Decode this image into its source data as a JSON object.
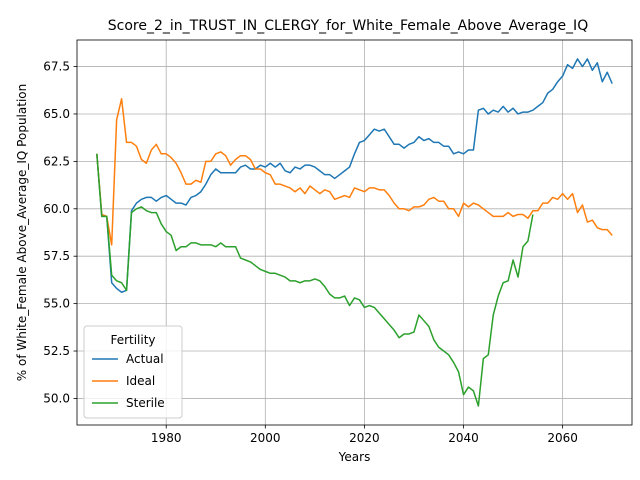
{
  "chart_data": {
    "type": "line",
    "title": "Score_2_in_TRUST_IN_CLERGY_for_White_Female_Above_Average_IQ",
    "xlabel": "Years",
    "ylabel": "% of White_Female Above_Average_IQ Population",
    "xlim": [
      1962,
      2074
    ],
    "ylim": [
      48.6,
      68.9
    ],
    "xticks": [
      1980,
      2000,
      2020,
      2040,
      2060
    ],
    "yticks": [
      50.0,
      52.5,
      55.0,
      57.5,
      60.0,
      62.5,
      65.0,
      67.5
    ],
    "ytick_labels": [
      "50.0",
      "52.5",
      "55.0",
      "57.5",
      "60.0",
      "62.5",
      "65.0",
      "67.5"
    ],
    "grid": true,
    "legend": {
      "title": "Fertility",
      "position": "lower-left"
    },
    "series": [
      {
        "name": "Actual",
        "color": "#1f77b4",
        "points": [
          [
            1966,
            62.9
          ],
          [
            1967,
            59.6
          ],
          [
            1968,
            59.6
          ],
          [
            1969,
            56.1
          ],
          [
            1970,
            55.8
          ],
          [
            1971,
            55.6
          ],
          [
            1972,
            55.7
          ],
          [
            1973,
            59.9
          ],
          [
            1974,
            60.3
          ],
          [
            1975,
            60.5
          ],
          [
            1976,
            60.6
          ],
          [
            1977,
            60.6
          ],
          [
            1978,
            60.4
          ],
          [
            1979,
            60.6
          ],
          [
            1980,
            60.7
          ],
          [
            1981,
            60.5
          ],
          [
            1982,
            60.3
          ],
          [
            1983,
            60.3
          ],
          [
            1984,
            60.2
          ],
          [
            1985,
            60.6
          ],
          [
            1986,
            60.7
          ],
          [
            1987,
            60.9
          ],
          [
            1988,
            61.3
          ],
          [
            1989,
            61.8
          ],
          [
            1990,
            62.1
          ],
          [
            1991,
            61.9
          ],
          [
            1992,
            61.9
          ],
          [
            1993,
            61.9
          ],
          [
            1994,
            61.9
          ],
          [
            1995,
            62.2
          ],
          [
            1996,
            62.3
          ],
          [
            1997,
            62.1
          ],
          [
            1998,
            62.1
          ],
          [
            1999,
            62.3
          ],
          [
            2000,
            62.2
          ],
          [
            2001,
            62.4
          ],
          [
            2002,
            62.2
          ],
          [
            2003,
            62.4
          ],
          [
            2004,
            62.0
          ],
          [
            2005,
            61.9
          ],
          [
            2006,
            62.2
          ],
          [
            2007,
            62.1
          ],
          [
            2008,
            62.3
          ],
          [
            2009,
            62.3
          ],
          [
            2010,
            62.2
          ],
          [
            2011,
            62.0
          ],
          [
            2012,
            61.8
          ],
          [
            2013,
            61.8
          ],
          [
            2014,
            61.6
          ],
          [
            2015,
            61.8
          ],
          [
            2016,
            62.0
          ],
          [
            2017,
            62.2
          ],
          [
            2018,
            62.9
          ],
          [
            2019,
            63.5
          ],
          [
            2020,
            63.6
          ],
          [
            2021,
            63.9
          ],
          [
            2022,
            64.2
          ],
          [
            2023,
            64.1
          ],
          [
            2024,
            64.2
          ],
          [
            2025,
            63.8
          ],
          [
            2026,
            63.4
          ],
          [
            2027,
            63.4
          ],
          [
            2028,
            63.2
          ],
          [
            2029,
            63.4
          ],
          [
            2030,
            63.5
          ],
          [
            2031,
            63.8
          ],
          [
            2032,
            63.6
          ],
          [
            2033,
            63.7
          ],
          [
            2034,
            63.5
          ],
          [
            2035,
            63.5
          ],
          [
            2036,
            63.3
          ],
          [
            2037,
            63.3
          ],
          [
            2038,
            62.9
          ],
          [
            2039,
            63.0
          ],
          [
            2040,
            62.9
          ],
          [
            2041,
            63.1
          ],
          [
            2042,
            63.1
          ],
          [
            2043,
            65.2
          ],
          [
            2044,
            65.3
          ],
          [
            2045,
            65.0
          ],
          [
            2046,
            65.2
          ],
          [
            2047,
            65.1
          ],
          [
            2048,
            65.4
          ],
          [
            2049,
            65.1
          ],
          [
            2050,
            65.3
          ],
          [
            2051,
            65.0
          ],
          [
            2052,
            65.1
          ],
          [
            2053,
            65.1
          ],
          [
            2054,
            65.2
          ],
          [
            2055,
            65.4
          ],
          [
            2056,
            65.6
          ],
          [
            2057,
            66.1
          ],
          [
            2058,
            66.3
          ],
          [
            2059,
            66.7
          ],
          [
            2060,
            67.0
          ],
          [
            2061,
            67.6
          ],
          [
            2062,
            67.4
          ],
          [
            2063,
            67.9
          ],
          [
            2064,
            67.5
          ],
          [
            2065,
            67.9
          ],
          [
            2066,
            67.3
          ],
          [
            2067,
            67.7
          ],
          [
            2068,
            66.7
          ],
          [
            2069,
            67.2
          ],
          [
            2070,
            66.6
          ]
        ]
      },
      {
        "name": "Ideal",
        "color": "#ff7f0e",
        "points": [
          [
            1966,
            62.9
          ],
          [
            1967,
            59.7
          ],
          [
            1968,
            59.6
          ],
          [
            1969,
            58.1
          ],
          [
            1970,
            64.7
          ],
          [
            1971,
            65.8
          ],
          [
            1972,
            63.5
          ],
          [
            1973,
            63.5
          ],
          [
            1974,
            63.3
          ],
          [
            1975,
            62.6
          ],
          [
            1976,
            62.4
          ],
          [
            1977,
            63.1
          ],
          [
            1978,
            63.4
          ],
          [
            1979,
            62.9
          ],
          [
            1980,
            62.9
          ],
          [
            1981,
            62.7
          ],
          [
            1982,
            62.4
          ],
          [
            1983,
            61.9
          ],
          [
            1984,
            61.3
          ],
          [
            1985,
            61.3
          ],
          [
            1986,
            61.5
          ],
          [
            1987,
            61.4
          ],
          [
            1988,
            62.5
          ],
          [
            1989,
            62.5
          ],
          [
            1990,
            62.9
          ],
          [
            1991,
            63.0
          ],
          [
            1992,
            62.8
          ],
          [
            1993,
            62.3
          ],
          [
            1994,
            62.6
          ],
          [
            1995,
            62.8
          ],
          [
            1996,
            62.8
          ],
          [
            1997,
            62.6
          ],
          [
            1998,
            62.1
          ],
          [
            1999,
            62.1
          ],
          [
            2000,
            61.9
          ],
          [
            2001,
            61.8
          ],
          [
            2002,
            61.3
          ],
          [
            2003,
            61.3
          ],
          [
            2004,
            61.2
          ],
          [
            2005,
            61.1
          ],
          [
            2006,
            60.9
          ],
          [
            2007,
            61.1
          ],
          [
            2008,
            60.8
          ],
          [
            2009,
            61.2
          ],
          [
            2010,
            61.0
          ],
          [
            2011,
            60.8
          ],
          [
            2012,
            61.0
          ],
          [
            2013,
            60.9
          ],
          [
            2014,
            60.5
          ],
          [
            2015,
            60.6
          ],
          [
            2016,
            60.7
          ],
          [
            2017,
            60.6
          ],
          [
            2018,
            61.1
          ],
          [
            2019,
            61.0
          ],
          [
            2020,
            60.9
          ],
          [
            2021,
            61.1
          ],
          [
            2022,
            61.1
          ],
          [
            2023,
            61.0
          ],
          [
            2024,
            61.0
          ],
          [
            2025,
            60.7
          ],
          [
            2026,
            60.3
          ],
          [
            2027,
            60.0
          ],
          [
            2028,
            60.0
          ],
          [
            2029,
            59.9
          ],
          [
            2030,
            60.1
          ],
          [
            2031,
            60.1
          ],
          [
            2032,
            60.2
          ],
          [
            2033,
            60.5
          ],
          [
            2034,
            60.6
          ],
          [
            2035,
            60.4
          ],
          [
            2036,
            60.4
          ],
          [
            2037,
            60.0
          ],
          [
            2038,
            60.0
          ],
          [
            2039,
            59.6
          ],
          [
            2040,
            60.3
          ],
          [
            2041,
            60.1
          ],
          [
            2042,
            60.3
          ],
          [
            2043,
            60.2
          ],
          [
            2044,
            60.0
          ],
          [
            2045,
            59.8
          ],
          [
            2046,
            59.6
          ],
          [
            2047,
            59.6
          ],
          [
            2048,
            59.6
          ],
          [
            2049,
            59.8
          ],
          [
            2050,
            59.6
          ],
          [
            2051,
            59.7
          ],
          [
            2052,
            59.7
          ],
          [
            2053,
            59.5
          ],
          [
            2054,
            59.9
          ],
          [
            2055,
            59.9
          ],
          [
            2056,
            60.3
          ],
          [
            2057,
            60.3
          ],
          [
            2058,
            60.6
          ],
          [
            2059,
            60.5
          ],
          [
            2060,
            60.8
          ],
          [
            2061,
            60.5
          ],
          [
            2062,
            60.8
          ],
          [
            2063,
            59.8
          ],
          [
            2064,
            60.2
          ],
          [
            2065,
            59.3
          ],
          [
            2066,
            59.4
          ],
          [
            2067,
            59.0
          ],
          [
            2068,
            58.9
          ],
          [
            2069,
            58.9
          ],
          [
            2070,
            58.6
          ]
        ]
      },
      {
        "name": "Sterile",
        "color": "#2ca02c",
        "points": [
          [
            1966,
            62.9
          ],
          [
            1967,
            59.6
          ],
          [
            1968,
            59.6
          ],
          [
            1969,
            56.5
          ],
          [
            1970,
            56.2
          ],
          [
            1971,
            56.1
          ],
          [
            1972,
            55.7
          ],
          [
            1973,
            59.8
          ],
          [
            1974,
            60.0
          ],
          [
            1975,
            60.1
          ],
          [
            1976,
            59.9
          ],
          [
            1977,
            59.8
          ],
          [
            1978,
            59.8
          ],
          [
            1979,
            59.2
          ],
          [
            1980,
            58.8
          ],
          [
            1981,
            58.6
          ],
          [
            1982,
            57.8
          ],
          [
            1983,
            58.0
          ],
          [
            1984,
            58.0
          ],
          [
            1985,
            58.2
          ],
          [
            1986,
            58.2
          ],
          [
            1987,
            58.1
          ],
          [
            1988,
            58.1
          ],
          [
            1989,
            58.1
          ],
          [
            1990,
            58.0
          ],
          [
            1991,
            58.2
          ],
          [
            1992,
            58.0
          ],
          [
            1993,
            58.0
          ],
          [
            1994,
            58.0
          ],
          [
            1995,
            57.4
          ],
          [
            1996,
            57.3
          ],
          [
            1997,
            57.2
          ],
          [
            1998,
            57.0
          ],
          [
            1999,
            56.8
          ],
          [
            2000,
            56.7
          ],
          [
            2001,
            56.6
          ],
          [
            2002,
            56.6
          ],
          [
            2003,
            56.5
          ],
          [
            2004,
            56.4
          ],
          [
            2005,
            56.2
          ],
          [
            2006,
            56.2
          ],
          [
            2007,
            56.1
          ],
          [
            2008,
            56.2
          ],
          [
            2009,
            56.2
          ],
          [
            2010,
            56.3
          ],
          [
            2011,
            56.2
          ],
          [
            2012,
            55.9
          ],
          [
            2013,
            55.5
          ],
          [
            2014,
            55.3
          ],
          [
            2015,
            55.3
          ],
          [
            2016,
            55.4
          ],
          [
            2017,
            54.9
          ],
          [
            2018,
            55.3
          ],
          [
            2019,
            55.2
          ],
          [
            2020,
            54.8
          ],
          [
            2021,
            54.9
          ],
          [
            2022,
            54.8
          ],
          [
            2023,
            54.5
          ],
          [
            2024,
            54.2
          ],
          [
            2025,
            53.9
          ],
          [
            2026,
            53.6
          ],
          [
            2027,
            53.2
          ],
          [
            2028,
            53.4
          ],
          [
            2029,
            53.4
          ],
          [
            2030,
            53.5
          ],
          [
            2031,
            54.4
          ],
          [
            2032,
            54.1
          ],
          [
            2033,
            53.8
          ],
          [
            2034,
            53.1
          ],
          [
            2035,
            52.7
          ],
          [
            2036,
            52.5
          ],
          [
            2037,
            52.3
          ],
          [
            2038,
            51.9
          ],
          [
            2039,
            51.4
          ],
          [
            2040,
            50.2
          ],
          [
            2041,
            50.6
          ],
          [
            2042,
            50.4
          ],
          [
            2043,
            49.6
          ],
          [
            2044,
            52.1
          ],
          [
            2045,
            52.3
          ],
          [
            2046,
            54.4
          ],
          [
            2047,
            55.4
          ],
          [
            2048,
            56.1
          ],
          [
            2049,
            56.2
          ],
          [
            2050,
            57.3
          ],
          [
            2051,
            56.4
          ],
          [
            2052,
            58.0
          ],
          [
            2053,
            58.3
          ],
          [
            2054,
            59.7
          ]
        ]
      }
    ]
  }
}
